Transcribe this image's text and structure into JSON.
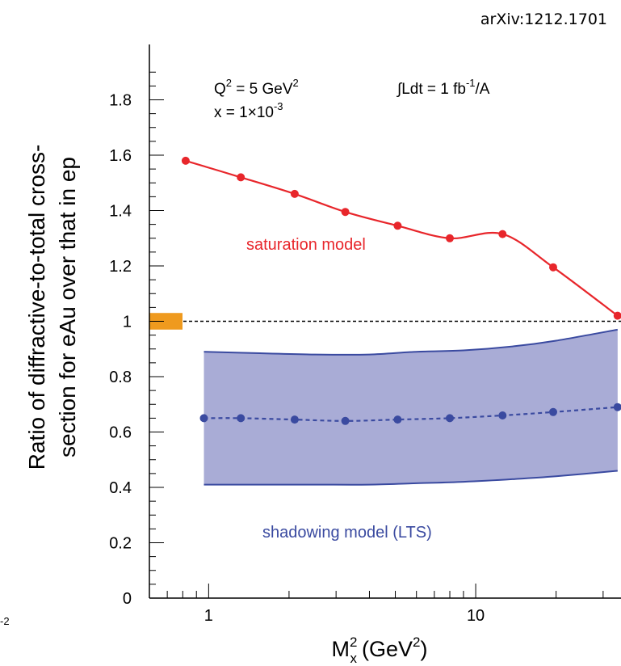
{
  "header": {
    "arxiv_id": "arXiv:1212.1701"
  },
  "chart_data": {
    "type": "line",
    "x_scale": "log",
    "xlim": [
      0.6,
      35
    ],
    "ylim": [
      0,
      2.0
    ],
    "xlabel": "M",
    "xlabel_sub": "x",
    "xlabel_sup": "2",
    "xlabel_unit": "(GeV",
    "xlabel_unit_sup": "2",
    "xlabel_unit_close": ")",
    "ylabel_line1": "Ratio of diffractive-to-total cross-",
    "ylabel_line2": "section for eAu over that in ep",
    "x_ticks_labeled": [
      {
        "value": 1,
        "label": "1"
      },
      {
        "value": 10,
        "label": "10"
      }
    ],
    "y_ticks": [
      {
        "value": 0,
        "label": "0"
      },
      {
        "value": 0.2,
        "label": "0.2"
      },
      {
        "value": 0.4,
        "label": "0.4"
      },
      {
        "value": 0.6,
        "label": "0.6"
      },
      {
        "value": 0.8,
        "label": "0.8"
      },
      {
        "value": 1.0,
        "label": "1"
      },
      {
        "value": 1.2,
        "label": "1.2"
      },
      {
        "value": 1.4,
        "label": "1.4"
      },
      {
        "value": 1.6,
        "label": "1.6"
      },
      {
        "value": 1.8,
        "label": "1.8"
      }
    ],
    "annotations": {
      "q2_text": "Q",
      "q2_sup": "2",
      "q2_value": " = 5 GeV",
      "q2_value_sup": "2",
      "x_text": "x = 1×10",
      "x_sup": "-3",
      "lumi_text": "∫Ldt = 1 fb",
      "lumi_sup": "-1",
      "lumi_tail": "/A",
      "saturation_label": "saturation model",
      "shadowing_label": "shadowing model (LTS)",
      "left_fragment": "-2"
    },
    "reference_line": 1.0,
    "reference_box": {
      "y_low": 0.97,
      "y_high": 1.03,
      "color": "#ef9a1e"
    },
    "series": [
      {
        "key": "saturation",
        "color": "#e8262b",
        "style": "solid",
        "x": [
          0.82,
          1.32,
          2.1,
          3.25,
          5.1,
          8.0,
          12.6,
          19.5,
          34.0
        ],
        "y": [
          1.58,
          1.52,
          1.46,
          1.395,
          1.345,
          1.3,
          1.315,
          1.195,
          1.02
        ]
      },
      {
        "key": "shadowing",
        "color": "#3a4aa0",
        "style": "dashed",
        "x": [
          0.96,
          1.32,
          2.1,
          3.25,
          5.1,
          8.0,
          12.6,
          19.5,
          34.0
        ],
        "y": [
          0.65,
          0.65,
          0.645,
          0.64,
          0.645,
          0.65,
          0.66,
          0.672,
          0.69
        ]
      }
    ],
    "band": {
      "color": "#a9acd6",
      "edge_color": "#3a4aa0",
      "x": [
        0.96,
        1.5,
        2.5,
        4.0,
        6.0,
        9.0,
        14.0,
        20.0,
        34.0
      ],
      "upper": [
        0.89,
        0.885,
        0.88,
        0.88,
        0.89,
        0.895,
        0.91,
        0.93,
        0.97
      ],
      "lower": [
        0.41,
        0.41,
        0.41,
        0.41,
        0.415,
        0.42,
        0.43,
        0.44,
        0.46
      ]
    }
  }
}
